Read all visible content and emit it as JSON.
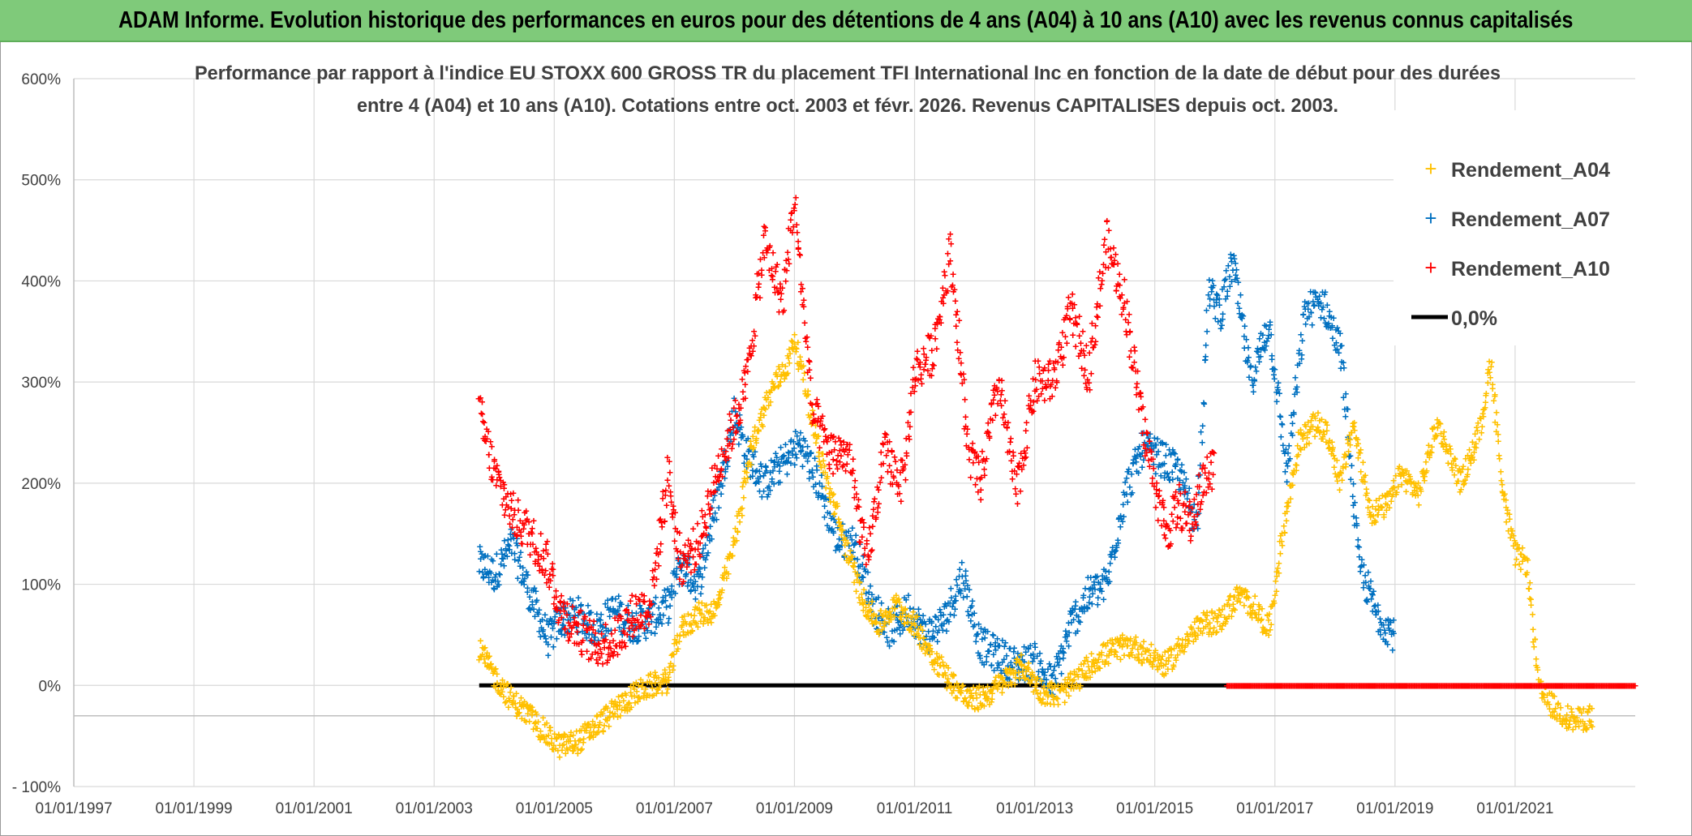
{
  "header": {
    "banner": "ADAM Informe. Evolution historique des performances en euros pour des détentions de 4 ans (A04) à 10 ans (A10) avec les revenus connus capitalisés"
  },
  "chart_data": {
    "type": "scatter",
    "title_line1": "Performance par rapport à l'indice EU STOXX 600 GROSS TR  du placement TFI International Inc en fonction de la date de début pour des durées",
    "title_line2": "entre 4 (A04) et 10 ans (A10). Cotations entre oct. 2003 et févr. 2026. Revenus CAPITALISES depuis oct. 2003.",
    "xlabel": "",
    "ylabel": "",
    "x_range": [
      1997.0,
      2023.0
    ],
    "ylim": [
      -100,
      600
    ],
    "grid": true,
    "legend_position": "top-right",
    "x_tick_labels": [
      "01/01/1997",
      "01/01/1999",
      "01/01/2001",
      "01/01/2003",
      "01/01/2005",
      "01/01/2007",
      "01/01/2009",
      "01/01/2011",
      "01/01/2013",
      "01/01/2015",
      "01/01/2017",
      "01/01/2019",
      "01/01/2021"
    ],
    "x_tick_values": [
      1997,
      1999,
      2001,
      2003,
      2005,
      2007,
      2009,
      2011,
      2013,
      2015,
      2017,
      2019,
      2021
    ],
    "y_ticks": [
      -100,
      0,
      100,
      200,
      300,
      400,
      500,
      600
    ],
    "y_tick_labels": [
      "- 100%",
      "0%",
      "100%",
      "200%",
      "300%",
      "400%",
      "500%",
      "600%"
    ],
    "colors": {
      "A04": "#ffc000",
      "A07": "#0070c0",
      "A10": "#ff0000",
      "zero": "#000000",
      "grid": "#d9d9d9",
      "axis": "#bfbfbf"
    },
    "series": [
      {
        "name": "Rendement_A04",
        "key": "A04",
        "x": [
          2003.75,
          2004.0,
          2004.3,
          2004.6,
          2004.9,
          2005.1,
          2005.4,
          2005.7,
          2006.0,
          2006.3,
          2006.6,
          2006.9,
          2007.1,
          2007.4,
          2007.7,
          2008.0,
          2008.3,
          2008.6,
          2008.9,
          2009.0,
          2009.2,
          2009.5,
          2009.8,
          2010.1,
          2010.4,
          2010.7,
          2011.0,
          2011.3,
          2011.6,
          2011.9,
          2012.2,
          2012.5,
          2012.8,
          2013.1,
          2013.4,
          2013.7,
          2014.0,
          2014.3,
          2014.6,
          2014.9,
          2015.2,
          2015.5,
          2015.8,
          2016.1,
          2016.4,
          2016.7,
          2016.9,
          2017.1,
          2017.4,
          2017.7,
          2017.9,
          2018.1,
          2018.3,
          2018.6,
          2018.9,
          2019.1,
          2019.4,
          2019.7,
          2019.9,
          2020.1,
          2020.4,
          2020.6,
          2020.8,
          2021.0,
          2021.2,
          2021.4,
          2021.7,
          2022.0,
          2022.3
        ],
        "y": [
          35,
          10,
          -15,
          -30,
          -50,
          -60,
          -55,
          -40,
          -25,
          -10,
          0,
          5,
          55,
          70,
          75,
          140,
          240,
          290,
          320,
          345,
          290,
          210,
          150,
          90,
          60,
          80,
          60,
          30,
          5,
          -15,
          -10,
          5,
          20,
          -5,
          -10,
          5,
          25,
          35,
          40,
          30,
          20,
          45,
          60,
          65,
          90,
          75,
          55,
          140,
          240,
          260,
          245,
          200,
          260,
          170,
          180,
          210,
          190,
          260,
          230,
          200,
          250,
          320,
          190,
          130,
          120,
          -5,
          -25,
          -35,
          -30
        ]
      },
      {
        "name": "Rendement_A07",
        "key": "A07",
        "x": [
          2003.75,
          2004.0,
          2004.3,
          2004.6,
          2004.9,
          2005.1,
          2005.4,
          2005.7,
          2006.0,
          2006.3,
          2006.6,
          2006.9,
          2007.1,
          2007.4,
          2007.7,
          2008.0,
          2008.2,
          2008.5,
          2008.8,
          2009.1,
          2009.4,
          2009.7,
          2010.0,
          2010.3,
          2010.6,
          2010.9,
          2011.2,
          2011.5,
          2011.8,
          2012.1,
          2012.4,
          2012.7,
          2013.0,
          2013.3,
          2013.6,
          2013.9,
          2014.2,
          2014.5,
          2014.8,
          2015.1,
          2015.4,
          2015.7,
          2015.9,
          2016.1,
          2016.3,
          2016.6,
          2016.9,
          2017.2,
          2017.5,
          2017.8,
          2018.1,
          2018.4,
          2018.7,
          2019.0
        ],
        "y": [
          120,
          110,
          140,
          90,
          45,
          65,
          70,
          55,
          75,
          60,
          65,
          80,
          120,
          100,
          180,
          270,
          230,
          200,
          220,
          240,
          200,
          145,
          140,
          80,
          55,
          75,
          50,
          65,
          110,
          40,
          30,
          20,
          25,
          0,
          60,
          90,
          100,
          190,
          235,
          225,
          210,
          160,
          390,
          370,
          420,
          300,
          360,
          210,
          370,
          380,
          330,
          120,
          70,
          50
        ]
      },
      {
        "name": "Rendement_A10",
        "key": "A10",
        "x": [
          2003.75,
          2004.0,
          2004.3,
          2004.6,
          2004.9,
          2005.1,
          2005.4,
          2005.7,
          2006.0,
          2006.3,
          2006.6,
          2006.9,
          2007.1,
          2007.4,
          2007.7,
          2008.0,
          2008.2,
          2008.5,
          2008.8,
          2009.0,
          2009.3,
          2009.6,
          2009.9,
          2010.2,
          2010.5,
          2010.8,
          2011.0,
          2011.3,
          2011.6,
          2011.9,
          2012.1,
          2012.4,
          2012.7,
          2013.0,
          2013.3,
          2013.6,
          2013.9,
          2014.2,
          2014.5,
          2014.8,
          2015.0,
          2015.2,
          2015.4,
          2015.6,
          2015.8,
          2016.0
        ],
        "y": [
          270,
          210,
          170,
          150,
          120,
          75,
          55,
          40,
          45,
          70,
          80,
          210,
          120,
          140,
          210,
          260,
          300,
          440,
          380,
          480,
          270,
          230,
          230,
          120,
          230,
          200,
          310,
          330,
          430,
          230,
          200,
          300,
          190,
          300,
          300,
          370,
          310,
          440,
          380,
          260,
          200,
          150,
          180,
          160,
          200,
          220
        ]
      },
      {
        "name": "0,0%",
        "key": "zero",
        "x": [
          2003.75,
          2016.2
        ],
        "y": [
          0,
          0
        ]
      }
    ],
    "tail_zero_series": {
      "key": "A10",
      "x_range": [
        2016.2,
        2023.0
      ],
      "y": 0
    }
  }
}
